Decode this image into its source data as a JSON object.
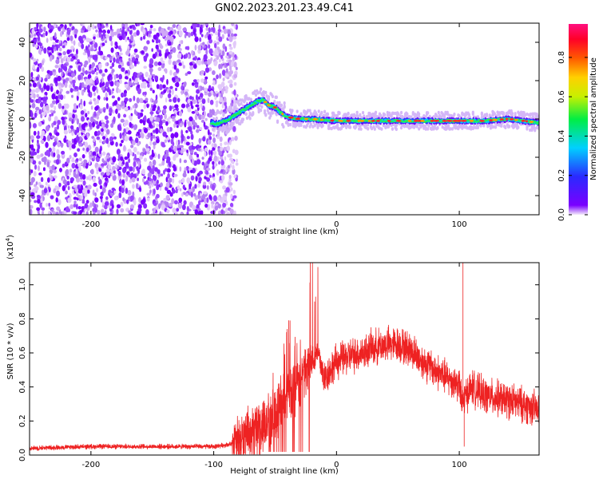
{
  "title": "GN02.2023.201.23.49.C41",
  "chart_data": [
    {
      "type": "heatmap",
      "xlabel": "Height of straight line (km)",
      "ylabel": "Frequency (Hz)",
      "xlim": [
        -250,
        165
      ],
      "ylim": [
        -50,
        50
      ],
      "xticks": [
        -200,
        -100,
        0,
        100
      ],
      "yticks": [
        -40,
        -20,
        0,
        20,
        40
      ],
      "colorbar": {
        "label": "Normalized spectral amplitude",
        "range": [
          0,
          0.97
        ],
        "ticks": [
          0.0,
          0.2,
          0.4,
          0.6,
          0.8
        ],
        "colormap": "rainbow (purple-blue-cyan-green-yellow-orange-red-magenta)"
      },
      "ridge": {
        "description": "frequency of peak spectral amplitude vs height",
        "points": [
          [
            -100,
            -3
          ],
          [
            -95,
            -2
          ],
          [
            -90,
            -1
          ],
          [
            -85,
            1
          ],
          [
            -80,
            3
          ],
          [
            -75,
            5
          ],
          [
            -70,
            7
          ],
          [
            -65,
            9
          ],
          [
            -60,
            10
          ],
          [
            -55,
            7
          ],
          [
            -50,
            6
          ],
          [
            -45,
            3
          ],
          [
            -40,
            1
          ],
          [
            -30,
            0
          ],
          [
            -20,
            0
          ],
          [
            0,
            -1
          ],
          [
            20,
            -1
          ],
          [
            40,
            -1
          ],
          [
            60,
            -1
          ],
          [
            80,
            -1
          ],
          [
            100,
            -1
          ],
          [
            120,
            -1
          ],
          [
            140,
            0
          ],
          [
            165,
            -2
          ]
        ]
      },
      "noise_region": [
        -250,
        -85
      ]
    },
    {
      "type": "line",
      "xlabel": "Height of straight line (km)",
      "ylabel": "SNR (10 * v/v)",
      "y_multiplier": "(x10^4)",
      "xlim": [
        -250,
        165
      ],
      "ylim": [
        0,
        1.13
      ],
      "xticks": [
        -200,
        -100,
        0,
        100
      ],
      "yticks": [
        0.0,
        0.2,
        0.4,
        0.6,
        0.8,
        1.0
      ],
      "color": "#ee2222",
      "series": [
        {
          "x": [
            -250,
            -200,
            -150,
            -100,
            -80,
            -60,
            -50,
            -40,
            -30,
            -20,
            -15,
            -10,
            0,
            10,
            20,
            30,
            40,
            50,
            60,
            70,
            80,
            90,
            100,
            102,
            105,
            110,
            120,
            140,
            160,
            165
          ],
          "y": [
            0.04,
            0.05,
            0.05,
            0.05,
            0.07,
            0.15,
            0.25,
            0.35,
            0.45,
            0.55,
            0.6,
            0.45,
            0.55,
            0.58,
            0.6,
            0.63,
            0.65,
            0.65,
            0.62,
            0.55,
            0.5,
            0.45,
            0.42,
            0.3,
            0.35,
            0.4,
            0.35,
            0.32,
            0.28,
            0.25
          ]
        }
      ],
      "spikes": [
        [
          -17,
          0.93
        ],
        [
          103,
          1.13
        ],
        [
          104,
          0.05
        ]
      ]
    }
  ]
}
